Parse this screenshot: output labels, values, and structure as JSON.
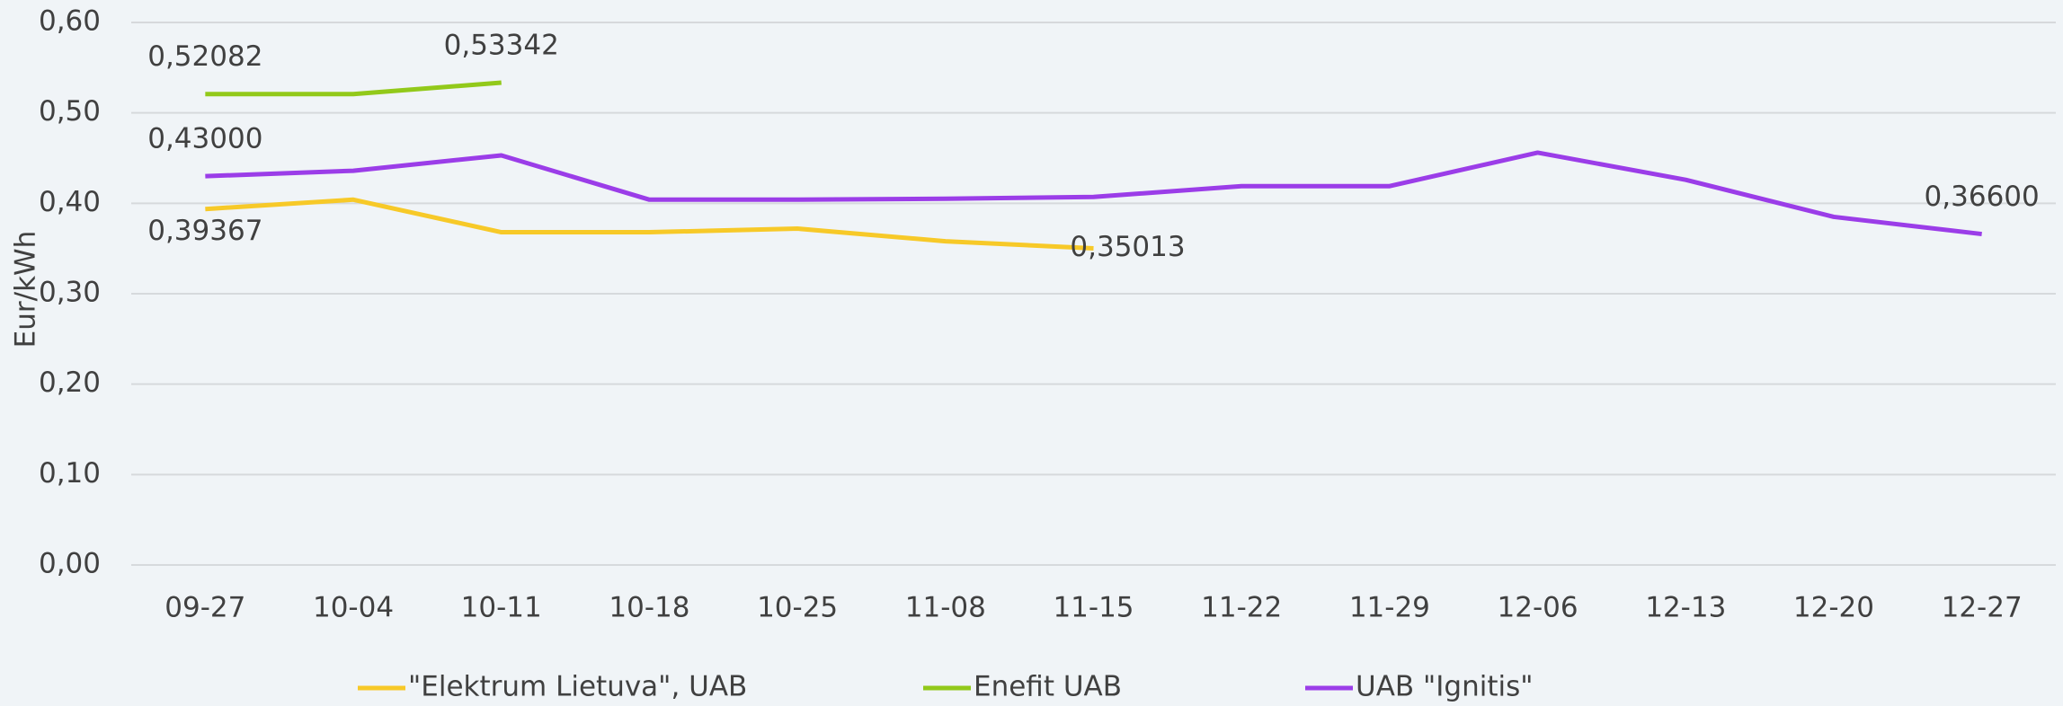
{
  "chart_data": {
    "type": "line",
    "y_label": "Eur/kWh",
    "categories": [
      "09-27",
      "10-04",
      "10-11",
      "10-18",
      "10-25",
      "11-08",
      "11-15",
      "11-22",
      "11-29",
      "12-06",
      "12-13",
      "12-20",
      "12-27"
    ],
    "series": [
      {
        "name": "\"Elektrum Lietuva\", UAB",
        "color": "#f7c928",
        "values": [
          0.39367,
          0.404,
          0.368,
          0.368,
          0.372,
          0.358,
          0.35013,
          null,
          null,
          null,
          null,
          null,
          null
        ],
        "value_labels": [
          "0,39367",
          null,
          null,
          null,
          null,
          null,
          "0,35013",
          null,
          null,
          null,
          null,
          null,
          null
        ]
      },
      {
        "name": "Enefit UAB",
        "color": "#92c91a",
        "values": [
          0.52082,
          0.52082,
          0.53342,
          null,
          null,
          null,
          null,
          null,
          null,
          null,
          null,
          null,
          null
        ],
        "value_labels": [
          "0,52082",
          null,
          "0,53342",
          null,
          null,
          null,
          null,
          null,
          null,
          null,
          null,
          null,
          null
        ]
      },
      {
        "name": "UAB \"Ignitis\"",
        "color": "#9b3de8",
        "values": [
          0.43,
          0.436,
          0.453,
          0.404,
          0.404,
          0.405,
          0.407,
          0.419,
          0.419,
          0.456,
          0.426,
          0.385,
          0.366
        ],
        "value_labels": [
          "0,43000",
          null,
          null,
          null,
          null,
          null,
          null,
          null,
          null,
          null,
          null,
          null,
          "0,36600"
        ]
      }
    ],
    "ylim": [
      0,
      0.6
    ],
    "yticks": [
      {
        "value": 0,
        "label": "0,00"
      },
      {
        "value": 0.1,
        "label": "0,10"
      },
      {
        "value": 0.2,
        "label": "0,20"
      },
      {
        "value": 0.3,
        "label": "0,30"
      },
      {
        "value": 0.4,
        "label": "0,40"
      },
      {
        "value": 0.5,
        "label": "0,50"
      },
      {
        "value": 0.6,
        "label": "0,60"
      }
    ],
    "grid": true,
    "legend": "bottom"
  }
}
